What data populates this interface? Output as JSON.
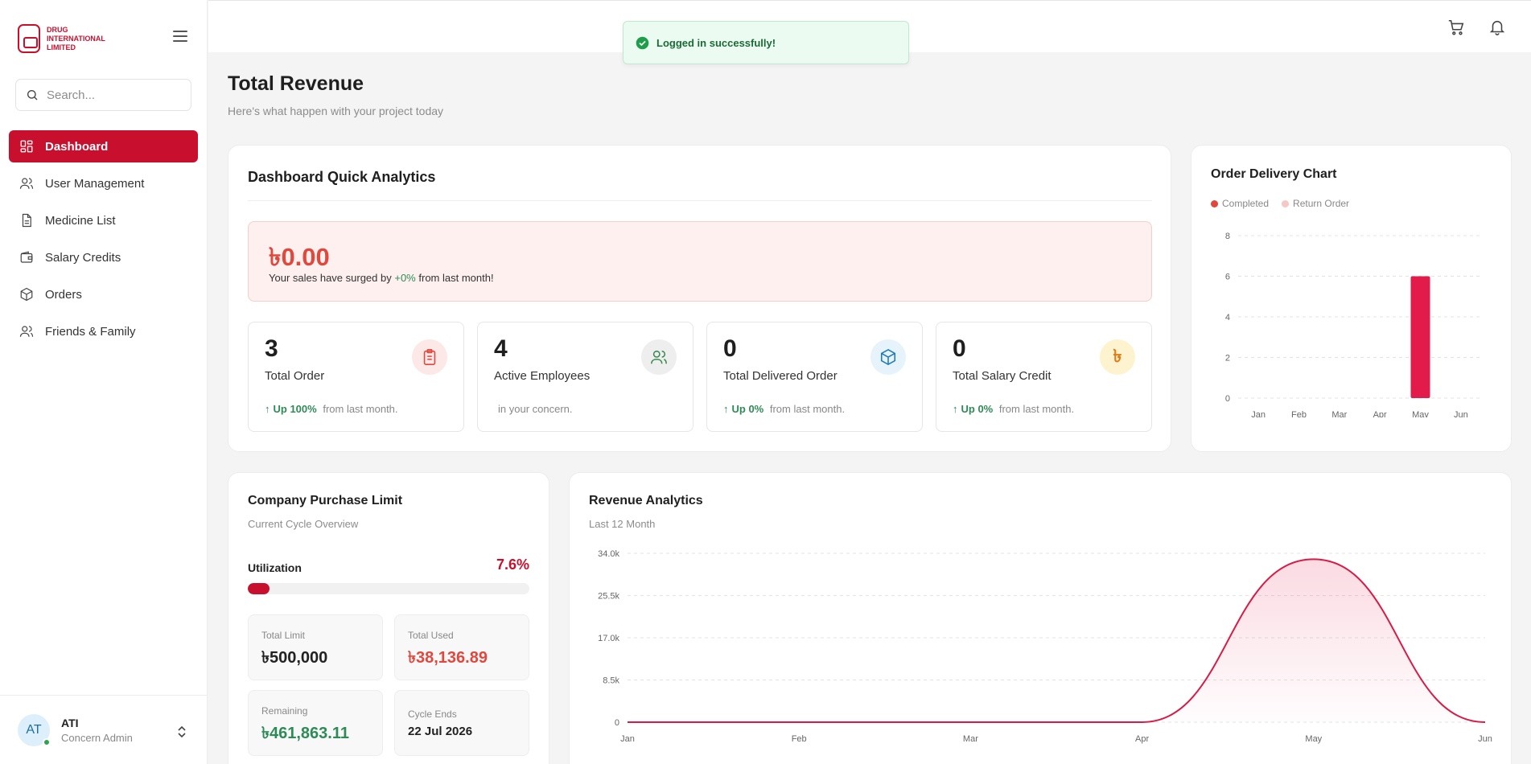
{
  "brand": {
    "name": "DRUG INTERNATIONAL LIMITED"
  },
  "search": {
    "placeholder": "Search..."
  },
  "sidebar": {
    "items": [
      {
        "label": "Dashboard",
        "icon": "dashboard-icon",
        "active": true
      },
      {
        "label": "User Management",
        "icon": "users-icon"
      },
      {
        "label": "Medicine List",
        "icon": "document-icon"
      },
      {
        "label": "Salary Credits",
        "icon": "wallet-icon"
      },
      {
        "label": "Orders",
        "icon": "package-icon"
      },
      {
        "label": "Friends & Family",
        "icon": "users-icon"
      }
    ]
  },
  "user": {
    "initials": "AT",
    "name": "ATI",
    "role": "Concern Admin"
  },
  "toast": {
    "message": "Logged in successfully!"
  },
  "page": {
    "title": "Total Revenue",
    "subtitle": "Here's what happen with your project today"
  },
  "quick_analytics": {
    "title": "Dashboard Quick Analytics",
    "sales_value": "৳0.00",
    "sales_text_before": "Your sales have surged by",
    "sales_change": "+0%",
    "sales_text_after": "from last month!",
    "stats": [
      {
        "value": "3",
        "label": "Total Order",
        "change": "Up 100%",
        "foot": "from last month.",
        "icon": "clipboard-icon",
        "icon_bg": "#fde8e8",
        "icon_color": "#e0483e"
      },
      {
        "value": "4",
        "label": "Active Employees",
        "change": "",
        "foot": "in your concern.",
        "icon": "users-icon",
        "icon_bg": "#eeeeee",
        "icon_color": "#3b8a4f"
      },
      {
        "value": "0",
        "label": "Total Delivered Order",
        "change": "Up 0%",
        "foot": "from last month.",
        "icon": "box-icon",
        "icon_bg": "#e6f3fb",
        "icon_color": "#1e7ab8"
      },
      {
        "value": "0",
        "label": "Total Salary Credit",
        "change": "Up 0%",
        "foot": "from last month.",
        "icon": "taka-icon",
        "icon_bg": "#fdf3cf",
        "icon_color": "#e07b1a"
      }
    ]
  },
  "order_delivery": {
    "title": "Order Delivery Chart",
    "legend": [
      {
        "label": "Completed",
        "color": "#e0483e"
      },
      {
        "label": "Return Order",
        "color": "#f7c7c3"
      }
    ]
  },
  "purchase_limit": {
    "title": "Company Purchase Limit",
    "subtitle": "Current Cycle Overview",
    "utilization_label": "Utilization",
    "utilization_value": "7.6%",
    "utilization_fraction": 0.076,
    "boxes": [
      {
        "label": "Total Limit",
        "value": "৳500,000",
        "tone": ""
      },
      {
        "label": "Total Used",
        "value": "৳38,136.89",
        "tone": "red"
      },
      {
        "label": "Remaining",
        "value": "৳461,863.11",
        "tone": "green"
      },
      {
        "label": "Cycle Ends",
        "value": "22 Jul 2026",
        "tone": "small"
      }
    ]
  },
  "revenue": {
    "title": "Revenue Analytics",
    "subtitle": "Last 12 Month"
  },
  "chart_data": [
    {
      "type": "bar",
      "title": "Order Delivery Chart",
      "categories": [
        "Jan",
        "Feb",
        "Mar",
        "Apr",
        "May",
        "Jun"
      ],
      "series": [
        {
          "name": "Completed",
          "values": [
            0,
            0,
            0,
            0,
            6,
            0
          ],
          "color": "#e31b4a"
        },
        {
          "name": "Return Order",
          "values": [
            0,
            0,
            0,
            0,
            0,
            0
          ],
          "color": "#f7c7c3"
        }
      ],
      "yticks": [
        "0",
        "2",
        "4",
        "6",
        "8"
      ],
      "ylim": [
        0,
        8
      ],
      "grid": true,
      "legend": "top-left"
    },
    {
      "type": "area",
      "title": "Revenue Analytics",
      "categories": [
        "Jan",
        "Feb",
        "Mar",
        "Apr",
        "May",
        "Jun"
      ],
      "series": [
        {
          "values": [
            0,
            0,
            0,
            0,
            32800,
            0
          ],
          "color": "#d81b46"
        }
      ],
      "yticks": [
        "0",
        "8.5k",
        "17.0k",
        "25.5k",
        "34.0k"
      ],
      "ylim": [
        0,
        34000
      ],
      "grid": true
    }
  ]
}
